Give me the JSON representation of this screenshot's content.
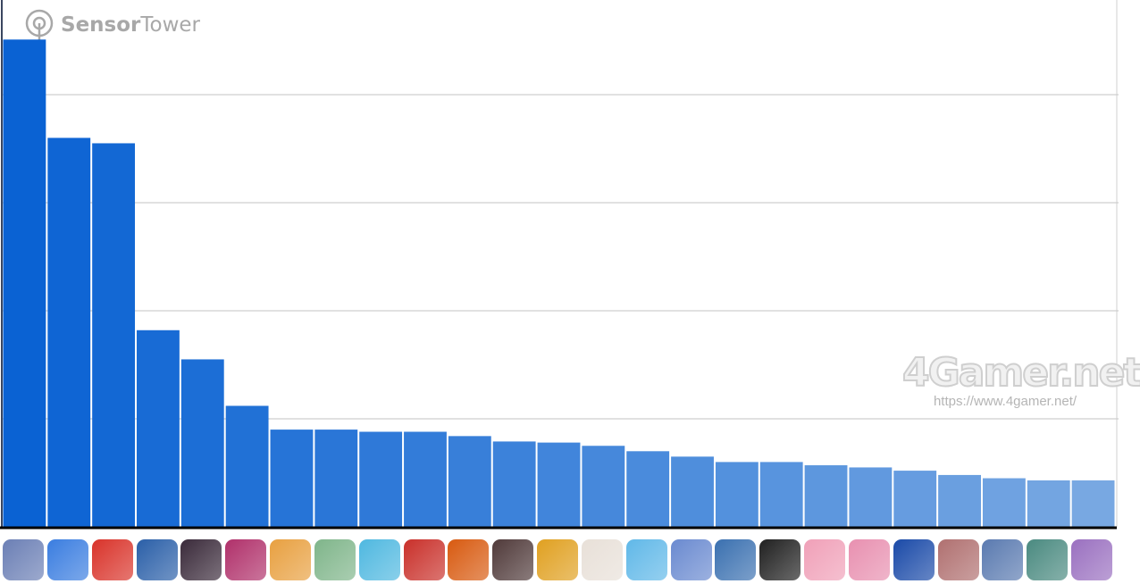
{
  "branding": {
    "logo_bold": "Sensor",
    "logo_light": "Tower",
    "watermark": "4Gamer.net",
    "watermark_url": "https://www.4gamer.net/"
  },
  "chart_data": {
    "type": "bar",
    "title": "",
    "xlabel": "",
    "ylabel": "",
    "grid": true,
    "gridlines": [
      1,
      2,
      3,
      4
    ],
    "ylim": [
      0,
      4.6
    ],
    "values": [
      4.51,
      3.6,
      3.55,
      1.82,
      1.55,
      1.12,
      0.9,
      0.9,
      0.88,
      0.88,
      0.84,
      0.79,
      0.78,
      0.75,
      0.7,
      0.65,
      0.6,
      0.6,
      0.57,
      0.55,
      0.52,
      0.48,
      0.45,
      0.43,
      0.43
    ],
    "bar_color_start": "#0a62d3",
    "bar_color_end": "#78a8e2",
    "category_icon_colors": [
      "#6b7fb5",
      "#3a7de0",
      "#d9332a",
      "#2a5fa8",
      "#3a2a3a",
      "#b0306a",
      "#e8a040",
      "#7fb58a",
      "#4fb8e0",
      "#c9302a",
      "#d85a10",
      "#503a3a",
      "#e0a020",
      "#e8e0d8",
      "#60b8e8",
      "#6a8ad0",
      "#3a70b0",
      "#202020",
      "#f0a0b8",
      "#e890b0",
      "#1a4aa8",
      "#b07070",
      "#5a7ab0",
      "#4a8a80",
      "#9a70c0"
    ]
  }
}
